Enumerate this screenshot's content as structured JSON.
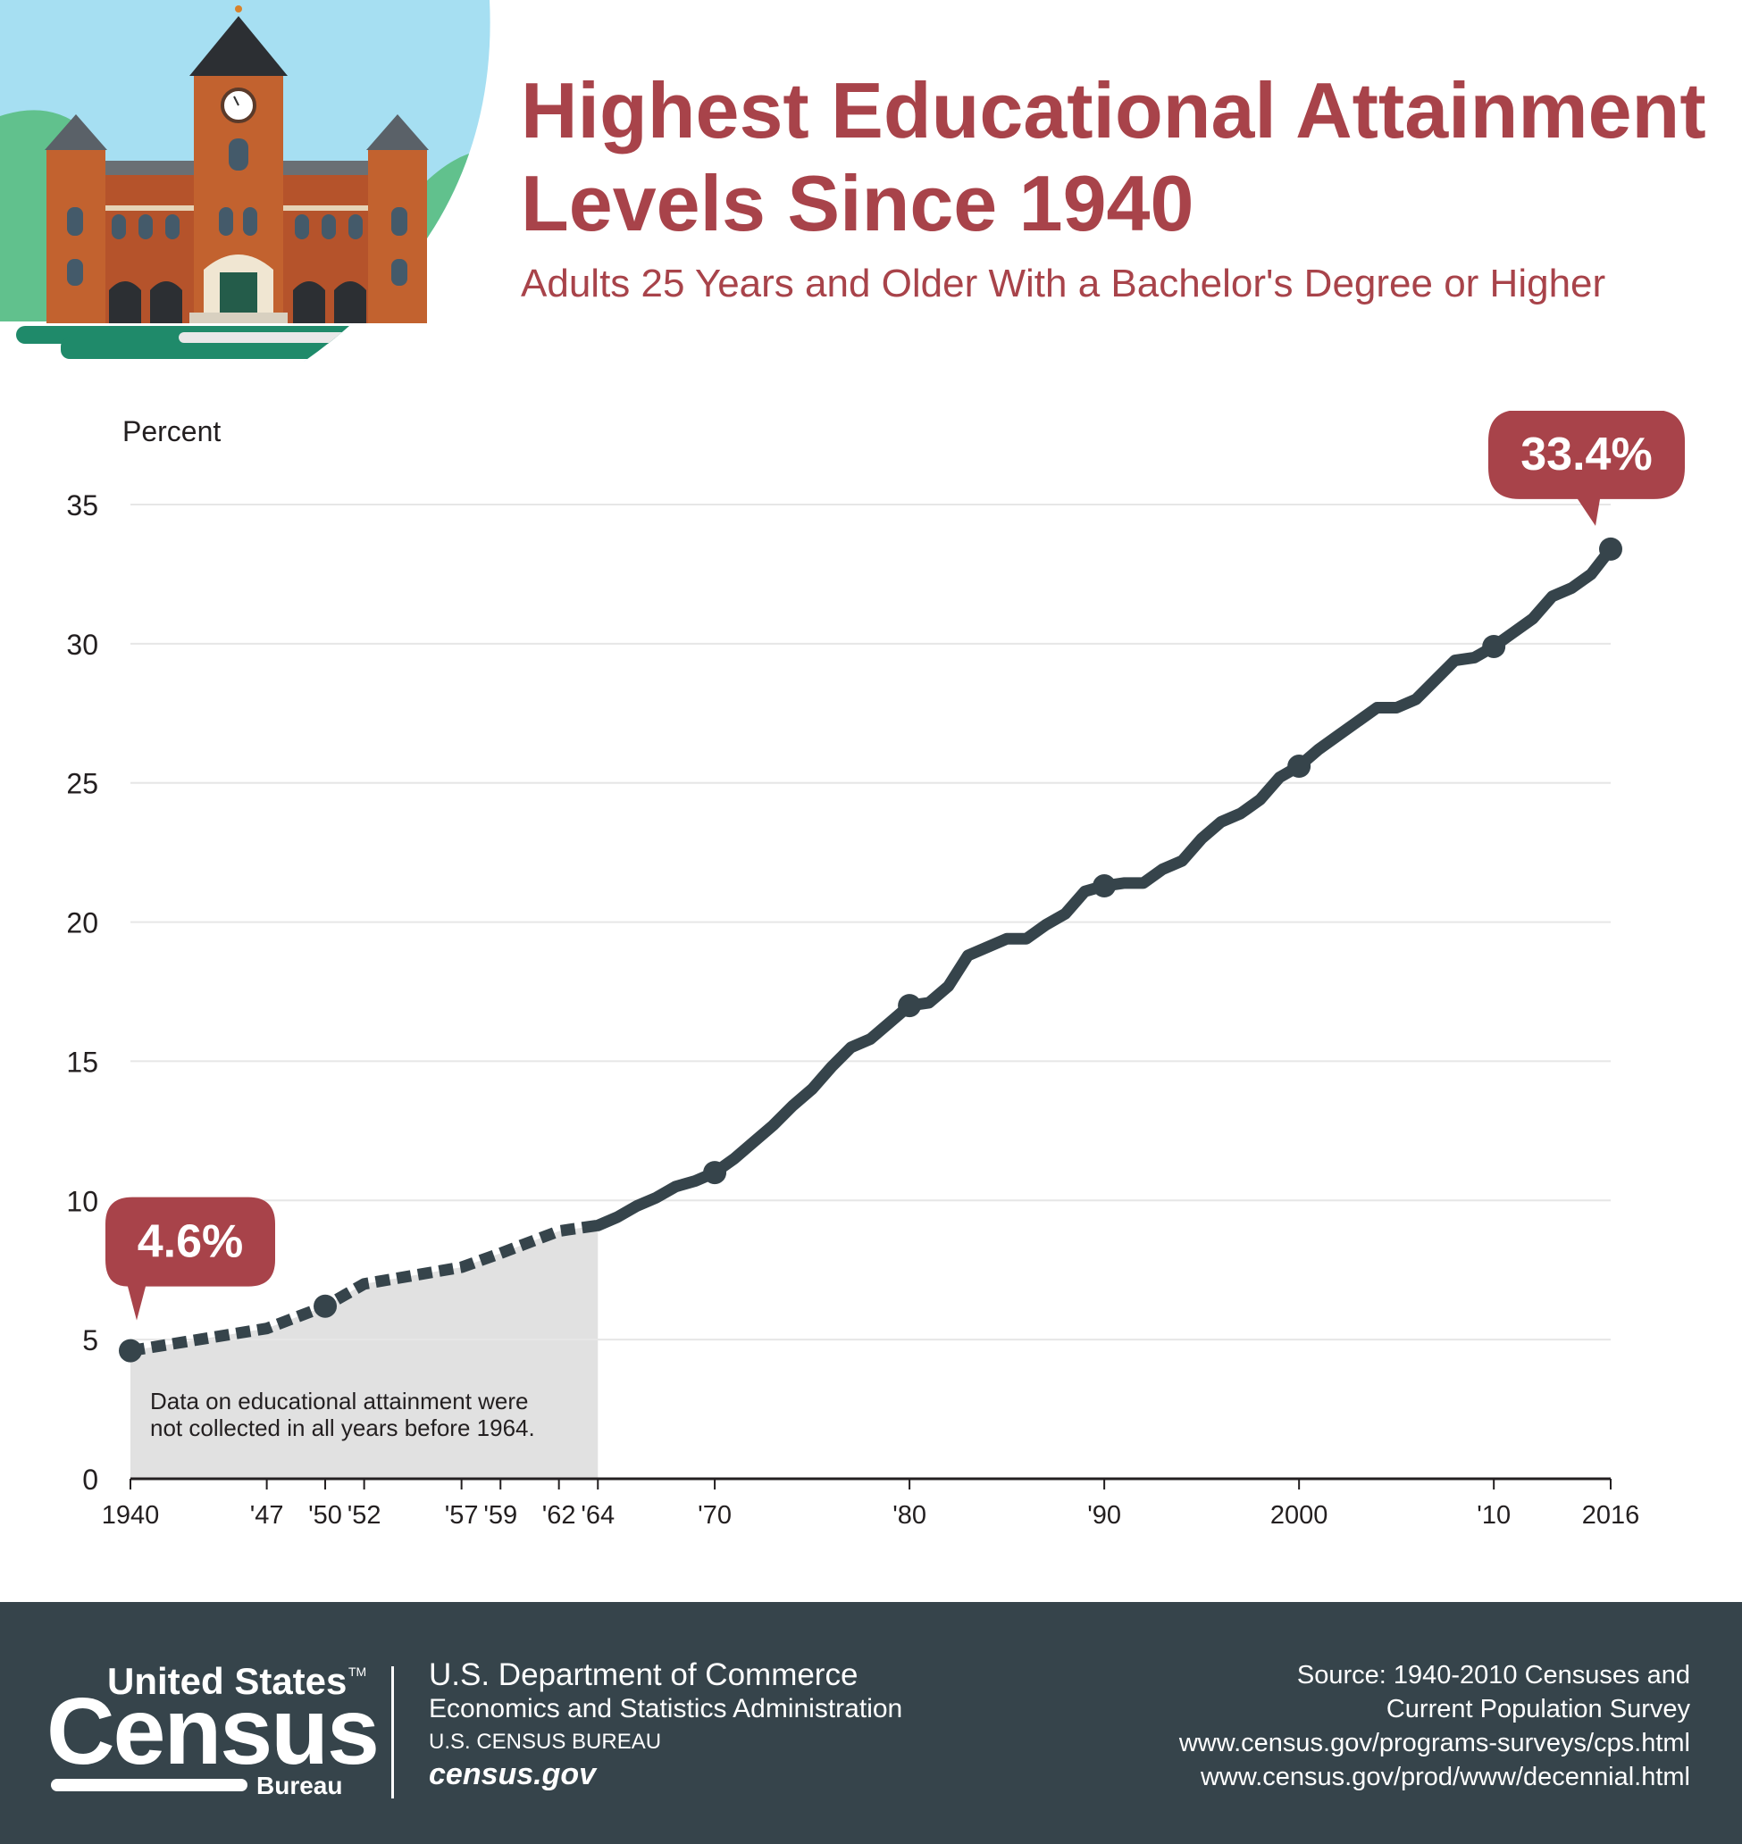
{
  "header": {
    "title_line1": "Highest Educational Attainment",
    "title_line2": "Levels Since 1940",
    "subtitle": "Adults 25 Years and Older With a Bachelor's Degree or Higher"
  },
  "colors": {
    "accent": "#a8434a",
    "line": "#36444b",
    "shade": "#e1e1e1",
    "grid": "#e6e6e6",
    "footer_bg": "#36444b"
  },
  "illustration": {
    "icon": "school-building-icon"
  },
  "chart_data": {
    "type": "line",
    "title": "Highest Educational Attainment Levels Since 1940",
    "subtitle": "Adults 25 Years and Older With a Bachelor's Degree or Higher",
    "ylabel": "Percent",
    "xlabel": "",
    "ylim": [
      0,
      35
    ],
    "xlim": [
      1940,
      2016
    ],
    "yticks": [
      0,
      5,
      10,
      15,
      20,
      25,
      30,
      35
    ],
    "xticks": [
      {
        "year": 1940,
        "label": "1940"
      },
      {
        "year": 1947,
        "label": "'47"
      },
      {
        "year": 1950,
        "label": "'50"
      },
      {
        "year": 1952,
        "label": "'52"
      },
      {
        "year": 1957,
        "label": "'57"
      },
      {
        "year": 1959,
        "label": "'59"
      },
      {
        "year": 1962,
        "label": "'62"
      },
      {
        "year": 1964,
        "label": "'64"
      },
      {
        "year": 1970,
        "label": "'70"
      },
      {
        "year": 1980,
        "label": "'80"
      },
      {
        "year": 1990,
        "label": "'90"
      },
      {
        "year": 2000,
        "label": "2000"
      },
      {
        "year": 2010,
        "label": "'10"
      },
      {
        "year": 2016,
        "label": "2016"
      }
    ],
    "grid": true,
    "dashed_series": {
      "note": "Data on educational attainment were not collected in all years before 1964.",
      "x": [
        1940,
        1947,
        1950,
        1952,
        1957,
        1959,
        1962,
        1964
      ],
      "y": [
        4.6,
        5.4,
        6.2,
        7.0,
        7.6,
        8.1,
        8.9,
        9.1
      ]
    },
    "solid_series": {
      "x": [
        1964,
        1965,
        1966,
        1967,
        1968,
        1969,
        1970,
        1971,
        1972,
        1973,
        1974,
        1975,
        1976,
        1977,
        1978,
        1979,
        1980,
        1981,
        1982,
        1983,
        1984,
        1985,
        1986,
        1987,
        1988,
        1989,
        1990,
        1991,
        1992,
        1993,
        1994,
        1995,
        1996,
        1997,
        1998,
        1999,
        2000,
        2001,
        2002,
        2003,
        2004,
        2005,
        2006,
        2007,
        2008,
        2009,
        2010,
        2011,
        2012,
        2013,
        2014,
        2015,
        2016
      ],
      "y": [
        9.1,
        9.4,
        9.8,
        10.1,
        10.5,
        10.7,
        11.0,
        11.5,
        12.1,
        12.7,
        13.4,
        14.0,
        14.8,
        15.5,
        15.8,
        16.4,
        17.0,
        17.1,
        17.7,
        18.8,
        19.1,
        19.4,
        19.4,
        19.9,
        20.3,
        21.1,
        21.3,
        21.4,
        21.4,
        21.9,
        22.2,
        23.0,
        23.6,
        23.9,
        24.4,
        25.2,
        25.6,
        26.2,
        26.7,
        27.2,
        27.7,
        27.7,
        28.0,
        28.7,
        29.4,
        29.5,
        29.9,
        30.4,
        30.9,
        31.7,
        32.0,
        32.5,
        33.4
      ]
    },
    "markers": [
      {
        "year": 1940,
        "value": 4.6
      },
      {
        "year": 1950,
        "value": 6.2
      },
      {
        "year": 1970,
        "value": 11.0
      },
      {
        "year": 1980,
        "value": 17.0
      },
      {
        "year": 1990,
        "value": 21.3
      },
      {
        "year": 2000,
        "value": 25.6
      },
      {
        "year": 2010,
        "value": 29.9
      },
      {
        "year": 2016,
        "value": 33.4
      }
    ],
    "shaded_range": [
      1940,
      1964
    ],
    "callouts": [
      {
        "year": 1940,
        "value": 4.6,
        "label": "4.6%"
      },
      {
        "year": 2016,
        "value": 33.4,
        "label": "33.4%"
      }
    ]
  },
  "footer": {
    "logo_top": "United States",
    "logo_tm": "TM",
    "logo_main": "Census",
    "logo_sub": "Bureau",
    "dept_line1": "U.S. Department of Commerce",
    "dept_line2": "Economics and Statistics Administration",
    "dept_line3": "U.S. CENSUS BUREAU",
    "dept_line4": "census.gov",
    "source_line1": "Source:  1940-2010 Censuses and",
    "source_line2": "Current Population Survey",
    "source_line3": "www.census.gov/programs-surveys/cps.html",
    "source_line4": "www.census.gov/prod/www/decennial.html"
  }
}
